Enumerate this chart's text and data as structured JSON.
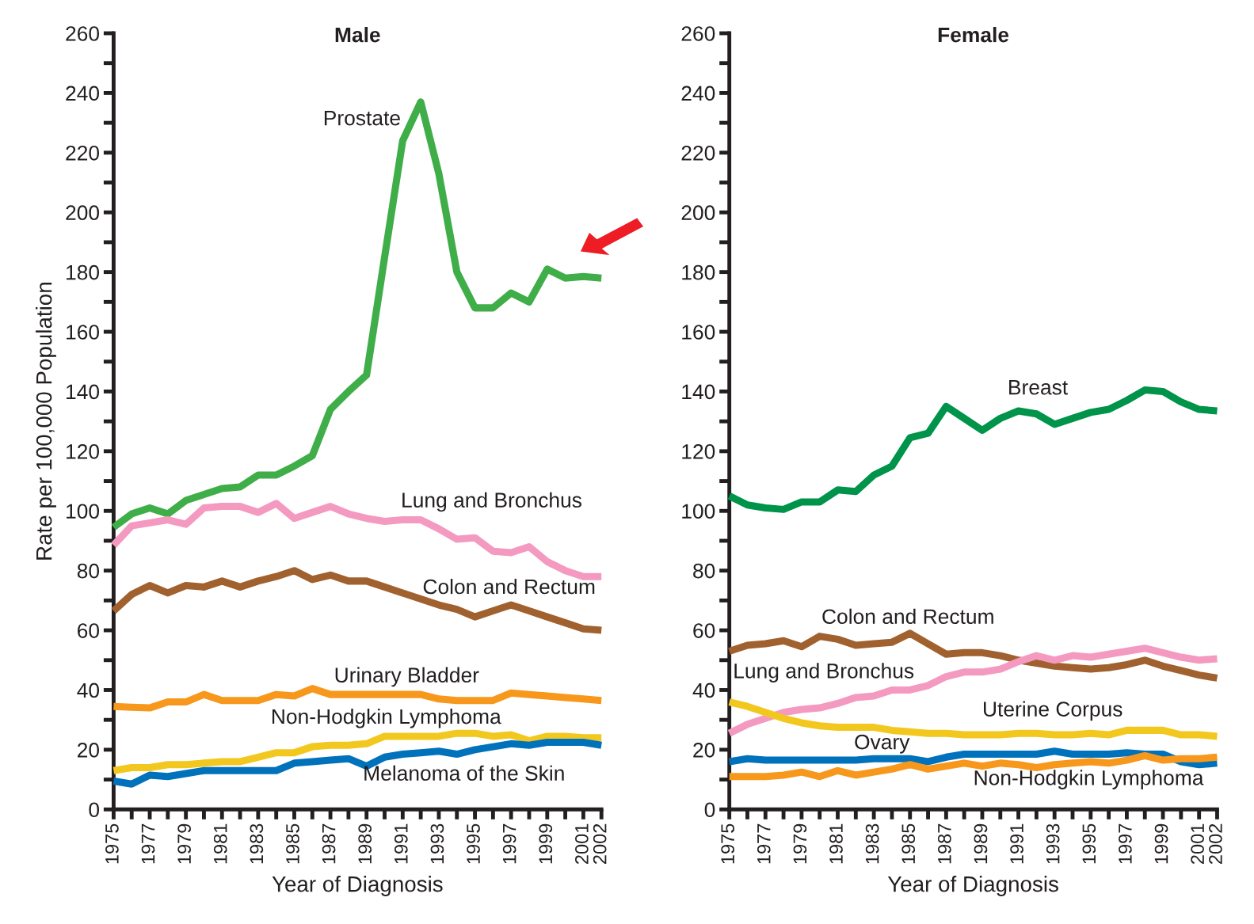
{
  "chart_data": [
    {
      "type": "line",
      "title": "Male",
      "xlabel": "Year of Diagnosis",
      "ylabel": "Rate per 100,000 Population",
      "x": [
        1975,
        1976,
        1977,
        1978,
        1979,
        1980,
        1981,
        1982,
        1983,
        1984,
        1985,
        1986,
        1987,
        1988,
        1989,
        1990,
        1991,
        1992,
        1993,
        1994,
        1995,
        1996,
        1997,
        1998,
        1999,
        2000,
        2001,
        2002
      ],
      "xlim": [
        1975,
        2002
      ],
      "xticks": [
        1975,
        {
          "value": 1976,
          "label": null
        },
        1977,
        {
          "value": 1978,
          "label": null
        },
        1979,
        {
          "value": 1980,
          "label": null
        },
        1981,
        {
          "value": 1982,
          "label": null
        },
        1983,
        {
          "value": 1984,
          "label": null
        },
        1985,
        {
          "value": 1986,
          "label": null
        },
        1987,
        {
          "value": 1988,
          "label": null
        },
        1989,
        {
          "value": 1990,
          "label": null
        },
        1991,
        {
          "value": 1992,
          "label": null
        },
        1993,
        {
          "value": 1994,
          "label": null
        },
        1995,
        {
          "value": 1996,
          "label": null
        },
        1997,
        {
          "value": 1998,
          "label": null
        },
        1999,
        {
          "value": 2000,
          "label": null
        },
        2001,
        2002
      ],
      "ylim": [
        0,
        260
      ],
      "yticks": [
        0,
        {
          "value": 10,
          "label": null
        },
        20,
        {
          "value": 30,
          "label": null
        },
        40,
        {
          "value": 50,
          "label": null
        },
        60,
        {
          "value": 70,
          "label": null
        },
        80,
        {
          "value": 90,
          "label": null
        },
        100,
        {
          "value": 110,
          "label": null
        },
        120,
        {
          "value": 130,
          "label": null
        },
        140,
        {
          "value": 150,
          "label": null
        },
        160,
        {
          "value": 170,
          "label": null
        },
        180,
        {
          "value": 190,
          "label": null
        },
        200,
        {
          "value": 210,
          "label": null
        },
        220,
        {
          "value": 230,
          "label": null
        },
        240,
        {
          "value": 250,
          "label": null
        },
        260
      ],
      "grid": false,
      "legend": false,
      "marker": "none",
      "line_style": "solid",
      "series": [
        {
          "name": "Prostate",
          "color": "#3fae49",
          "values": [
            94.5,
            99,
            101,
            99,
            103.5,
            105.5,
            107.5,
            108,
            112,
            112,
            115,
            118.5,
            134,
            140,
            145.5,
            185,
            224,
            237,
            213,
            180,
            168,
            168,
            173,
            170,
            181,
            178,
            178.5,
            178
          ]
        },
        {
          "name": "Lung and Bronchus",
          "color": "#f49ac1",
          "values": [
            88.5,
            95,
            96,
            97,
            95.5,
            101,
            101.5,
            101.5,
            99.5,
            102.5,
            97.5,
            99.5,
            101.5,
            99,
            97.5,
            96.5,
            97,
            97,
            94,
            90.5,
            91,
            86.5,
            86,
            88,
            83,
            80,
            78,
            78
          ]
        },
        {
          "name": "Colon and Rectum",
          "color": "#a0612f",
          "values": [
            66.5,
            72,
            75,
            72.5,
            75,
            74.5,
            76.5,
            74.5,
            76.5,
            78,
            80,
            77,
            78.5,
            76.5,
            76.5,
            74.5,
            72.5,
            70.5,
            68.5,
            67,
            64.5,
            66.5,
            68.5,
            66.5,
            64.5,
            62.5,
            60.5,
            60
          ]
        },
        {
          "name": "Urinary Bladder",
          "color": "#f7981d",
          "values": [
            34.5,
            34.2,
            34,
            36,
            36,
            38.5,
            36.5,
            36.5,
            36.5,
            38.5,
            38,
            40.5,
            38.5,
            38.5,
            38.5,
            38.5,
            38.5,
            38.5,
            37,
            36.5,
            36.5,
            36.5,
            39,
            38.5,
            38,
            37.5,
            37,
            36.5
          ]
        },
        {
          "name": "Non-Hodgkin Lymphoma",
          "color": "#f2c81e",
          "values": [
            13,
            14,
            14,
            15,
            15,
            15.5,
            16,
            16,
            17.5,
            19,
            19,
            21,
            21.5,
            21.5,
            22,
            24.5,
            24.5,
            24.5,
            24.5,
            25.5,
            25.5,
            24.5,
            25,
            23,
            24.5,
            24.5,
            24,
            24
          ]
        },
        {
          "name": "Melanoma of the Skin",
          "color": "#0072bc",
          "values": [
            9.5,
            8.5,
            11.5,
            11,
            12,
            13,
            13,
            13,
            13,
            13,
            15.5,
            16,
            16.5,
            17,
            14.5,
            17.5,
            18.5,
            19,
            19.5,
            18.5,
            20,
            21,
            22,
            21.5,
            22.5,
            22.5,
            22.5,
            21.5
          ]
        }
      ]
    },
    {
      "type": "line",
      "title": "Female",
      "xlabel": "Year of Diagnosis",
      "x": [
        1975,
        1976,
        1977,
        1978,
        1979,
        1980,
        1981,
        1982,
        1983,
        1984,
        1985,
        1986,
        1987,
        1988,
        1989,
        1990,
        1991,
        1992,
        1993,
        1994,
        1995,
        1996,
        1997,
        1998,
        1999,
        2000,
        2001,
        2002
      ],
      "xlim": [
        1975,
        2002
      ],
      "xticks": [
        1975,
        {
          "value": 1976,
          "label": null
        },
        1977,
        {
          "value": 1978,
          "label": null
        },
        1979,
        {
          "value": 1980,
          "label": null
        },
        1981,
        {
          "value": 1982,
          "label": null
        },
        1983,
        {
          "value": 1984,
          "label": null
        },
        1985,
        {
          "value": 1986,
          "label": null
        },
        1987,
        {
          "value": 1988,
          "label": null
        },
        1989,
        {
          "value": 1990,
          "label": null
        },
        1991,
        {
          "value": 1992,
          "label": null
        },
        1993,
        {
          "value": 1994,
          "label": null
        },
        1995,
        {
          "value": 1996,
          "label": null
        },
        1997,
        {
          "value": 1998,
          "label": null
        },
        1999,
        {
          "value": 2000,
          "label": null
        },
        2001,
        2002
      ],
      "ylim": [
        0,
        260
      ],
      "yticks": [
        0,
        {
          "value": 10,
          "label": null
        },
        20,
        {
          "value": 30,
          "label": null
        },
        40,
        {
          "value": 50,
          "label": null
        },
        60,
        {
          "value": 70,
          "label": null
        },
        80,
        {
          "value": 90,
          "label": null
        },
        100,
        {
          "value": 110,
          "label": null
        },
        120,
        {
          "value": 130,
          "label": null
        },
        140,
        {
          "value": 150,
          "label": null
        },
        160,
        {
          "value": 170,
          "label": null
        },
        180,
        {
          "value": 190,
          "label": null
        },
        200,
        {
          "value": 210,
          "label": null
        },
        220,
        {
          "value": 230,
          "label": null
        },
        240,
        {
          "value": 250,
          "label": null
        },
        260
      ],
      "grid": false,
      "legend": false,
      "marker": "none",
      "line_style": "solid",
      "series": [
        {
          "name": "Breast",
          "color": "#00934a",
          "values": [
            105,
            102,
            101,
            100.5,
            103,
            103,
            107,
            106.5,
            112,
            115,
            124.5,
            126,
            135,
            131,
            127,
            131,
            133.5,
            132.5,
            129,
            131,
            133,
            134,
            137,
            140.5,
            140,
            136.5,
            134,
            133.5
          ]
        },
        {
          "name": "Colon and Rectum",
          "color": "#a0612f",
          "values": [
            53,
            55,
            55.5,
            56.5,
            54.5,
            58,
            57,
            55,
            55.5,
            56,
            59,
            55.5,
            52,
            52.5,
            52.5,
            51.5,
            50,
            49,
            48,
            47.5,
            47,
            47.5,
            48.5,
            50,
            48,
            46.5,
            45,
            44
          ]
        },
        {
          "name": "Lung and Bronchus",
          "color": "#f49ac1",
          "values": [
            25.5,
            28.5,
            30.5,
            32.5,
            33.5,
            34,
            35.5,
            37.5,
            38,
            40,
            40,
            41.5,
            44.5,
            46,
            46,
            47,
            49.5,
            51.5,
            50,
            51.5,
            51,
            52,
            53,
            54,
            52.5,
            51,
            50,
            50.5
          ]
        },
        {
          "name": "Uterine Corpus",
          "color": "#f2c81e",
          "values": [
            36,
            34.5,
            32.5,
            30.5,
            29,
            28,
            27.5,
            27.5,
            27.5,
            26.5,
            26,
            25.5,
            25.5,
            25,
            25,
            25,
            25.5,
            25.5,
            25,
            25,
            25.5,
            25,
            26.5,
            26.5,
            26.5,
            25,
            25,
            24.5
          ]
        },
        {
          "name": "Ovary",
          "color": "#0072bc",
          "values": [
            16,
            17,
            16.5,
            16.5,
            16.5,
            16.5,
            16.5,
            16.5,
            17,
            17,
            17,
            16,
            17.5,
            18.5,
            18.5,
            18.5,
            18.5,
            18.5,
            19.5,
            18.5,
            18.5,
            18.5,
            19,
            18.5,
            18.5,
            16,
            15,
            15.5
          ]
        },
        {
          "name": "Non-Hodgkin Lymphoma",
          "color": "#f7981d",
          "values": [
            11,
            11,
            11,
            11.5,
            12.5,
            11,
            13,
            11.5,
            12.5,
            13.5,
            15,
            13.5,
            14.5,
            15.5,
            14.5,
            15.5,
            15,
            14,
            15,
            15.5,
            16,
            15.5,
            16.5,
            18,
            16.5,
            17,
            17,
            17.5
          ]
        }
      ]
    }
  ]
}
